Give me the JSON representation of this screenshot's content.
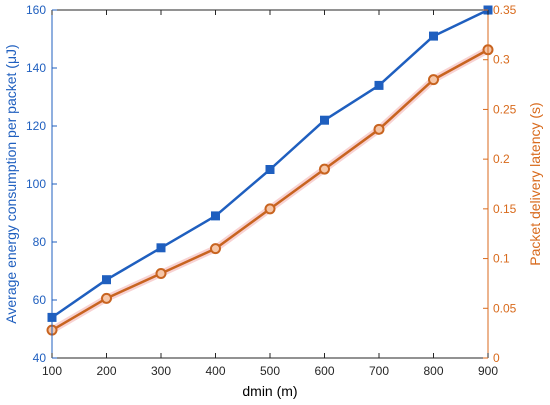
{
  "chart_data": {
    "type": "line",
    "x": [
      100,
      200,
      300,
      400,
      500,
      600,
      700,
      800,
      900
    ],
    "xlabel": "dmin (m)",
    "xlim": [
      100,
      900
    ],
    "xticks": [
      100,
      200,
      300,
      400,
      500,
      600,
      700,
      800,
      900
    ],
    "left_axis": {
      "label": "Average energy consumption per packet (μJ)",
      "ylim": [
        40,
        160
      ],
      "ticks": [
        40,
        60,
        80,
        100,
        120,
        140,
        160
      ],
      "color": "#1f5fbf"
    },
    "right_axis": {
      "label": "Packet delivery latency (s)",
      "ylim": [
        0,
        0.35
      ],
      "ticks": [
        "0",
        "0.05",
        "0.1",
        "0.15",
        "0.2",
        "0.25",
        "0.3",
        "0.35"
      ],
      "color": "#d86a1c"
    },
    "series": [
      {
        "axis": "left",
        "marker": "square",
        "color": "#1f5fbf",
        "values": [
          54,
          67,
          78,
          89,
          105,
          122,
          134,
          151,
          160
        ]
      },
      {
        "axis": "right",
        "marker": "circle",
        "color": "#c86420",
        "values": [
          0.028,
          0.06,
          0.085,
          0.11,
          0.15,
          0.19,
          0.23,
          0.28,
          0.31
        ]
      }
    ],
    "grid": false,
    "legend": "none"
  }
}
